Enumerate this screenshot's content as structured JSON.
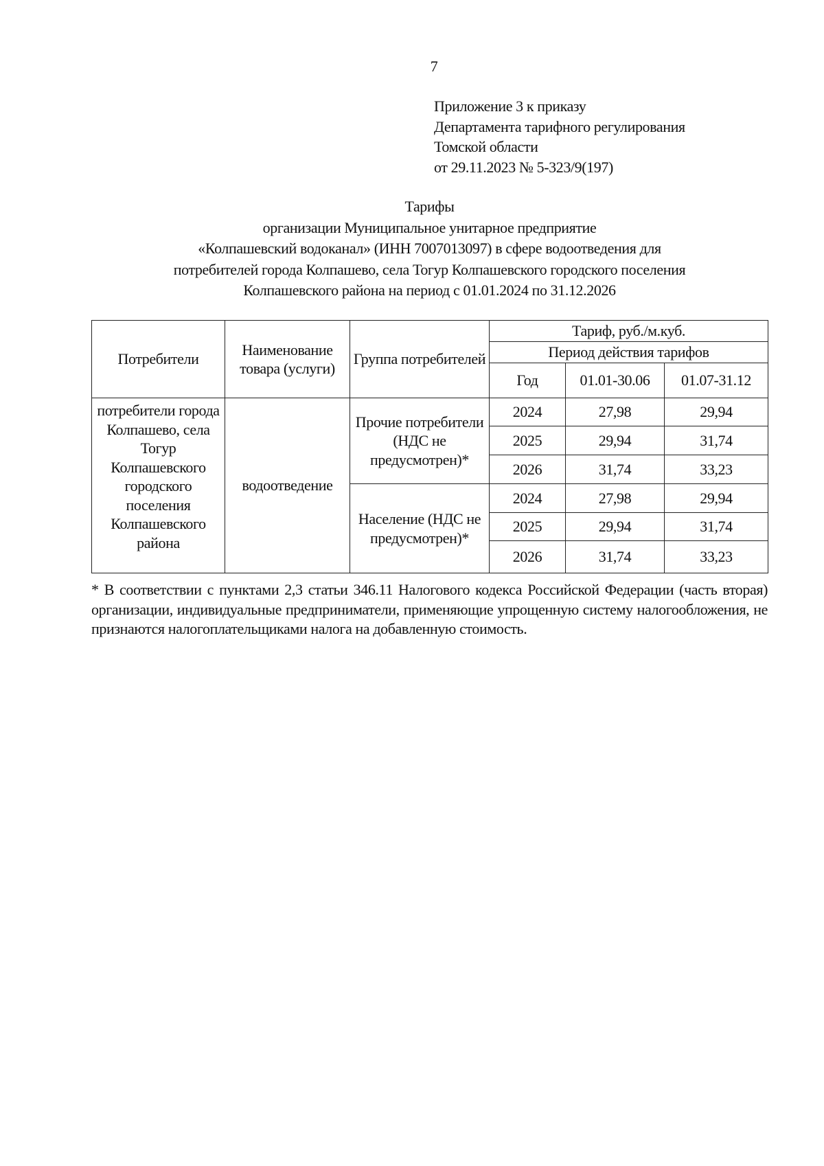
{
  "page_number": "7",
  "appendix": {
    "lines": [
      "Приложение 3 к приказу",
      "Департамента тарифного регулирования",
      "Томской области",
      "от 29.11.2023 № 5-323/9(197)"
    ]
  },
  "title": {
    "heading": "Тарифы",
    "lines": [
      "организации Муниципальное унитарное предприятие",
      "«Колпашевский водоканал» (ИНН 7007013097) в сфере водоотведения для",
      "потребителей города Колпашево, села Тогур Колпашевского городского поселения",
      "Колпашевского района на период с 01.01.2024 по 31.12.2026"
    ]
  },
  "table": {
    "headers": {
      "consumers": "Потребители",
      "service_name": "Наименование товара (услуги)",
      "group": "Группа потребителей",
      "tariff": "Тариф, руб./м.куб.",
      "period": "Период действия тарифов",
      "year": "Год",
      "h1": "01.01-30.06",
      "h2": "01.07-31.12"
    },
    "consumers": "потребители города Колпашево, села Тогур Колпашевского городского поселения Колпашевского района",
    "service": "водоотведение",
    "groups": [
      {
        "name": "Прочие потребители (НДС не предусмотрен)*",
        "rows": [
          {
            "year": "2024",
            "h1": "27,98",
            "h2": "29,94"
          },
          {
            "year": "2025",
            "h1": "29,94",
            "h2": "31,74"
          },
          {
            "year": "2026",
            "h1": "31,74",
            "h2": "33,23"
          }
        ]
      },
      {
        "name": "Население (НДС не предусмотрен)*",
        "rows": [
          {
            "year": "2024",
            "h1": "27,98",
            "h2": "29,94"
          },
          {
            "year": "2025",
            "h1": "29,94",
            "h2": "31,74"
          },
          {
            "year": "2026",
            "h1": "31,74",
            "h2": "33,23"
          }
        ]
      }
    ]
  },
  "footnote": "* В соответствии с пунктами 2,3 статьи 346.11 Налогового кодекса Российской Федерации (часть вторая) организации, индивидуальные предприниматели, применяющие упрощенную систему налогообложения, не признаются налогоплательщиками налога на добавленную стоимость."
}
